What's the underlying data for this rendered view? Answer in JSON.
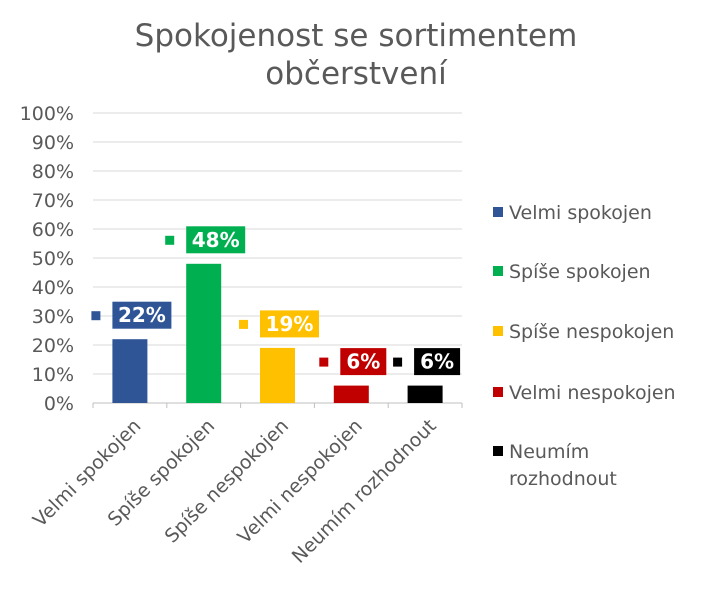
{
  "chart_data": {
    "type": "bar",
    "title": [
      "Spokojenost se sortimentem",
      "občerstvení"
    ],
    "categories": [
      "Velmi spokojen",
      "Spíše spokojen",
      "Spíše nespokojen",
      "Velmi nespokojen",
      "Neumím rozhodnout"
    ],
    "values": [
      22,
      48,
      19,
      6,
      6
    ],
    "data_labels": [
      "22%",
      "48%",
      "19%",
      "6%",
      "6%"
    ],
    "colors": [
      "#2F5597",
      "#00B050",
      "#FFC000",
      "#C00000",
      "#000000"
    ],
    "ylim": [
      0,
      100
    ],
    "yticks": [
      "0%",
      "10%",
      "20%",
      "30%",
      "40%",
      "50%",
      "60%",
      "70%",
      "80%",
      "90%",
      "100%"
    ],
    "grid": true,
    "legend": {
      "placement": "right",
      "entries": [
        [
          "Velmi spokojen"
        ],
        [
          "Spíše spokojen"
        ],
        [
          "Spíše nespokojen"
        ],
        [
          "Velmi nespokojen"
        ],
        [
          "Neumím",
          "rozhodnout"
        ]
      ]
    }
  }
}
